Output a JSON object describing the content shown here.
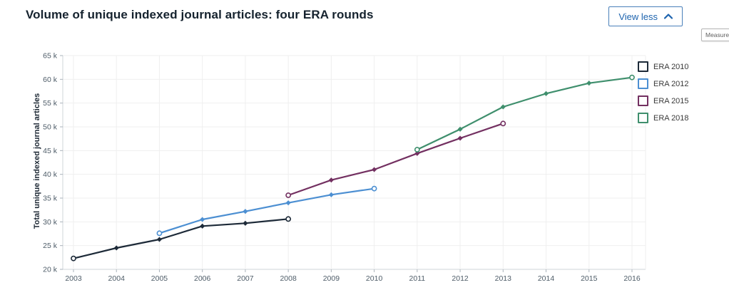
{
  "header": {
    "title": "Volume of unique indexed journal articles: four ERA rounds",
    "view_less_label": "View less",
    "collapse_icon": "chevron-up-icon"
  },
  "measures_chip": {
    "text": "Measures,"
  },
  "colors": {
    "accent_blue": "#1d63ae",
    "button_border": "#4a80ba",
    "title_text": "#15222e",
    "tick_text": "#4e5c68",
    "gridline": "#efefef",
    "axis_line": "#cfd4d9",
    "era_2010": "#1d2a38",
    "era_2012": "#4c8fd2",
    "era_2015": "#733061",
    "era_2018": "#3f8f6d"
  },
  "chart_data": {
    "type": "line",
    "title": "Volume of unique indexed journal articles: four ERA rounds",
    "xlabel": "",
    "ylabel": "Total unique indexed journal articles",
    "x_ticks": [
      2003,
      2004,
      2005,
      2006,
      2007,
      2008,
      2009,
      2010,
      2011,
      2012,
      2013,
      2014,
      2015,
      2016
    ],
    "ylim": [
      20000,
      65000
    ],
    "ytick_step": 5000,
    "ytick_suffix": " k",
    "grid": true,
    "legend_position": "right",
    "marker_style": {
      "endpoints": "open-circle",
      "midpoints": "filled-diamond"
    },
    "series": [
      {
        "name": "ERA 2010",
        "color": "#1d2a38",
        "points": [
          [
            2003,
            22300
          ],
          [
            2004,
            24500
          ],
          [
            2005,
            26300
          ],
          [
            2006,
            29100
          ],
          [
            2007,
            29700
          ],
          [
            2008,
            30600
          ]
        ]
      },
      {
        "name": "ERA 2012",
        "color": "#4c8fd2",
        "points": [
          [
            2005,
            27600
          ],
          [
            2006,
            30500
          ],
          [
            2007,
            32200
          ],
          [
            2008,
            34000
          ],
          [
            2009,
            35700
          ],
          [
            2010,
            37000
          ]
        ]
      },
      {
        "name": "ERA 2015",
        "color": "#733061",
        "points": [
          [
            2008,
            35600
          ],
          [
            2009,
            38800
          ],
          [
            2010,
            41000
          ],
          [
            2011,
            44400
          ],
          [
            2012,
            47600
          ],
          [
            2013,
            50700
          ]
        ]
      },
      {
        "name": "ERA 2018",
        "color": "#3f8f6d",
        "points": [
          [
            2011,
            45200
          ],
          [
            2012,
            49500
          ],
          [
            2013,
            54200
          ],
          [
            2014,
            57000
          ],
          [
            2015,
            59200
          ],
          [
            2016,
            60400
          ]
        ]
      }
    ]
  }
}
